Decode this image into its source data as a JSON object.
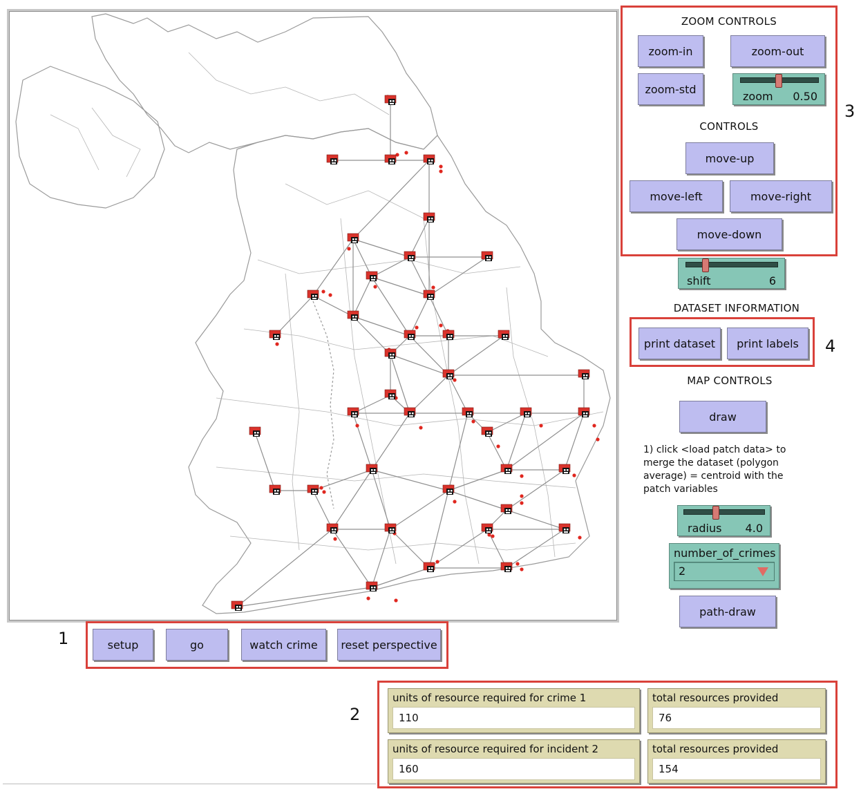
{
  "world": {
    "node_icon": "police-station-icon",
    "colors": {
      "border": "#9a9a9a",
      "links": "#8f8f8f",
      "node": "#d9332c",
      "crime": "#e0271f"
    }
  },
  "zoom_controls": {
    "title": "ZOOM CONTROLS",
    "zoom_in": "zoom-in",
    "zoom_out": "zoom-out",
    "zoom_std": "zoom-std",
    "zoom_slider": {
      "label": "zoom",
      "value": "0.50",
      "level": 0.5
    }
  },
  "controls": {
    "title": "CONTROLS",
    "move_up": "move-up",
    "move_left": "move-left",
    "move_right": "move-right",
    "move_down": "move-down"
  },
  "shift_slider": {
    "label": "shift",
    "value": "6",
    "level": 0.2
  },
  "dataset_info": {
    "title": "DATASET INFORMATION",
    "print_dataset": "print dataset",
    "print_labels": "print labels"
  },
  "map_controls": {
    "title": "MAP CONTROLS",
    "draw": "draw",
    "note_line1": "1) click <load patch data> to",
    "note_line2": "merge the dataset (polygon",
    "note_line3": "average) = centroid with the",
    "note_line4": "patch variables"
  },
  "radius_slider": {
    "label": "radius",
    "value": "4.0",
    "level": 0.4
  },
  "chooser": {
    "label": "number_of_crimes",
    "value": "2"
  },
  "path_draw": "path-draw",
  "main_buttons": {
    "setup": "setup",
    "go": "go",
    "watch_crime": "watch crime",
    "reset_perspective": "reset perspective"
  },
  "monitors": {
    "m1_label": "units of resource required for crime 1",
    "m1_value": "110",
    "m2_label": "total resources provided",
    "m2_value": "76",
    "m3_label": "units of resource required for incident 2",
    "m3_value": "160",
    "m4_label": "total resources provided",
    "m4_value": "154"
  },
  "callouts": {
    "c1": "1",
    "c2": "2",
    "c3": "3",
    "c4": "4"
  }
}
